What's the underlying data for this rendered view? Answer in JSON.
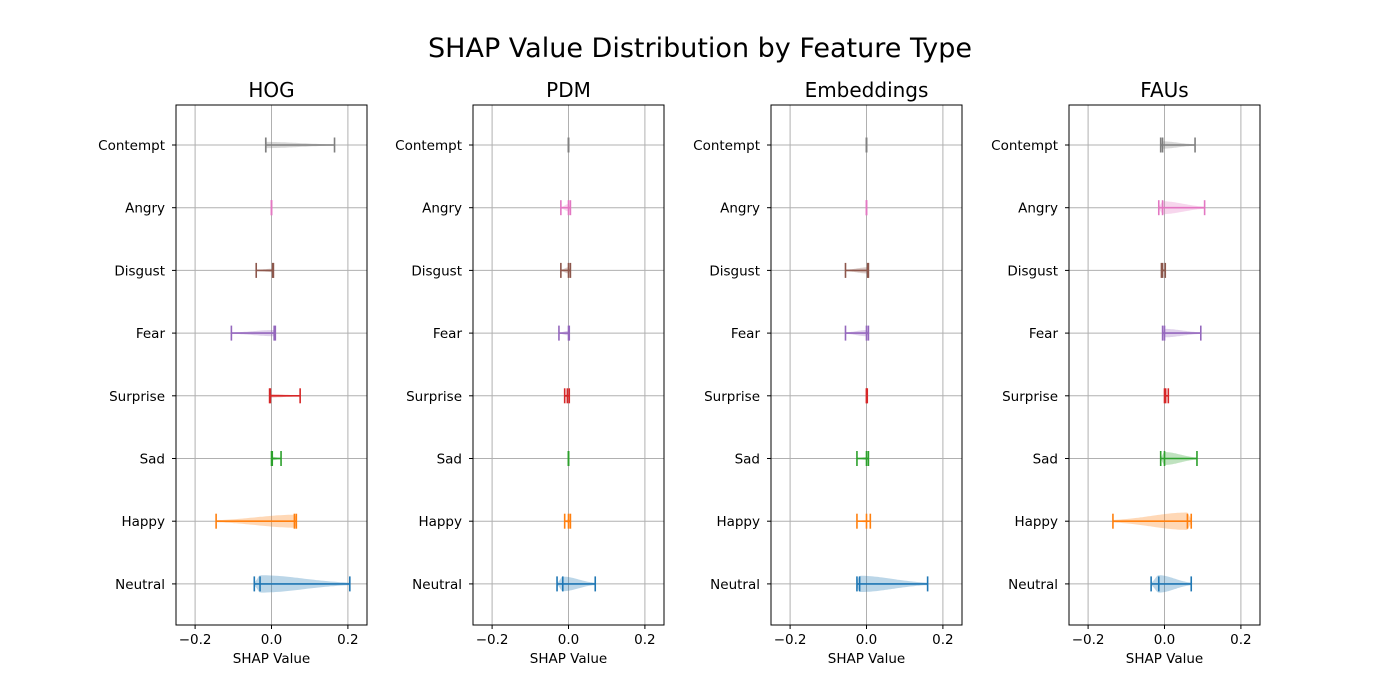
{
  "suptitle": "SHAP Value Distribution by Feature Type",
  "chart_data": {
    "type": "violin",
    "orientation": "horizontal",
    "categories": [
      "Neutral",
      "Happy",
      "Sad",
      "Surprise",
      "Fear",
      "Disgust",
      "Angry",
      "Contempt"
    ],
    "category_colors": [
      "#1f77b4",
      "#ff7f0e",
      "#2ca02c",
      "#d62728",
      "#9467bd",
      "#8c564b",
      "#e377c2",
      "#7f7f7f"
    ],
    "xlim": [
      -0.25,
      0.25
    ],
    "xticks": [
      -0.2,
      0.0,
      0.2
    ],
    "xtick_labels": [
      "−0.2",
      "0.0",
      "0.2"
    ],
    "grid": true,
    "panels": [
      {
        "title": "HOG",
        "xlabel": "SHAP Value",
        "series": [
          {
            "name": "Neutral",
            "min": -0.045,
            "median": -0.03,
            "max": 0.205,
            "spread": 0.3
          },
          {
            "name": "Happy",
            "min": -0.145,
            "median": 0.06,
            "max": 0.065,
            "spread": 0.22
          },
          {
            "name": "Sad",
            "min": 0.0,
            "median": 0.002,
            "max": 0.025,
            "spread": 0.05
          },
          {
            "name": "Surprise",
            "min": -0.005,
            "median": -0.003,
            "max": 0.075,
            "spread": 0.05
          },
          {
            "name": "Fear",
            "min": -0.105,
            "median": 0.007,
            "max": 0.01,
            "spread": 0.1
          },
          {
            "name": "Disgust",
            "min": -0.04,
            "median": 0.003,
            "max": 0.005,
            "spread": 0.05
          },
          {
            "name": "Angry",
            "min": 0.0,
            "median": 0.0,
            "max": 0.0,
            "spread": 0.0
          },
          {
            "name": "Contempt",
            "min": -0.015,
            "median": -0.015,
            "max": 0.165,
            "spread": 0.1
          }
        ]
      },
      {
        "title": "PDM",
        "xlabel": "SHAP Value",
        "series": [
          {
            "name": "Neutral",
            "min": -0.03,
            "median": -0.015,
            "max": 0.07,
            "spread": 0.25
          },
          {
            "name": "Happy",
            "min": -0.01,
            "median": 0.0,
            "max": 0.005,
            "spread": 0.06
          },
          {
            "name": "Sad",
            "min": 0.0,
            "median": 0.0,
            "max": 0.0,
            "spread": 0.0
          },
          {
            "name": "Surprise",
            "min": -0.01,
            "median": -0.003,
            "max": 0.002,
            "spread": 0.05
          },
          {
            "name": "Fear",
            "min": -0.025,
            "median": 0.0,
            "max": 0.002,
            "spread": 0.07
          },
          {
            "name": "Disgust",
            "min": -0.02,
            "median": 0.0,
            "max": 0.005,
            "spread": 0.1
          },
          {
            "name": "Angry",
            "min": -0.02,
            "median": 0.0,
            "max": 0.005,
            "spread": 0.12
          },
          {
            "name": "Contempt",
            "min": 0.0,
            "median": 0.0,
            "max": 0.0,
            "spread": 0.0
          }
        ]
      },
      {
        "title": "Embeddings",
        "xlabel": "SHAP Value",
        "series": [
          {
            "name": "Neutral",
            "min": -0.025,
            "median": -0.018,
            "max": 0.16,
            "spread": 0.28
          },
          {
            "name": "Happy",
            "min": -0.025,
            "median": 0.0,
            "max": 0.01,
            "spread": 0.03
          },
          {
            "name": "Sad",
            "min": -0.025,
            "median": 0.0,
            "max": 0.005,
            "spread": 0.04
          },
          {
            "name": "Surprise",
            "min": 0.0,
            "median": 0.0,
            "max": 0.002,
            "spread": 0.02
          },
          {
            "name": "Fear",
            "min": -0.055,
            "median": 0.0,
            "max": 0.005,
            "spread": 0.1
          },
          {
            "name": "Disgust",
            "min": -0.055,
            "median": 0.003,
            "max": 0.005,
            "spread": 0.1
          },
          {
            "name": "Angry",
            "min": 0.0,
            "median": 0.0,
            "max": 0.0,
            "spread": 0.0
          },
          {
            "name": "Contempt",
            "min": 0.0,
            "median": 0.0,
            "max": 0.0,
            "spread": 0.0
          }
        ]
      },
      {
        "title": "FAUs",
        "xlabel": "SHAP Value",
        "series": [
          {
            "name": "Neutral",
            "min": -0.035,
            "median": -0.015,
            "max": 0.07,
            "spread": 0.3
          },
          {
            "name": "Happy",
            "min": -0.135,
            "median": 0.06,
            "max": 0.07,
            "spread": 0.3
          },
          {
            "name": "Sad",
            "min": -0.01,
            "median": 0.0,
            "max": 0.085,
            "spread": 0.22
          },
          {
            "name": "Surprise",
            "min": 0.0,
            "median": 0.003,
            "max": 0.01,
            "spread": 0.03
          },
          {
            "name": "Fear",
            "min": -0.005,
            "median": 0.0,
            "max": 0.095,
            "spread": 0.14
          },
          {
            "name": "Disgust",
            "min": -0.008,
            "median": -0.005,
            "max": 0.002,
            "spread": 0.05
          },
          {
            "name": "Angry",
            "min": -0.015,
            "median": -0.005,
            "max": 0.105,
            "spread": 0.22
          },
          {
            "name": "Contempt",
            "min": -0.01,
            "median": -0.005,
            "max": 0.08,
            "spread": 0.12
          }
        ]
      }
    ]
  }
}
